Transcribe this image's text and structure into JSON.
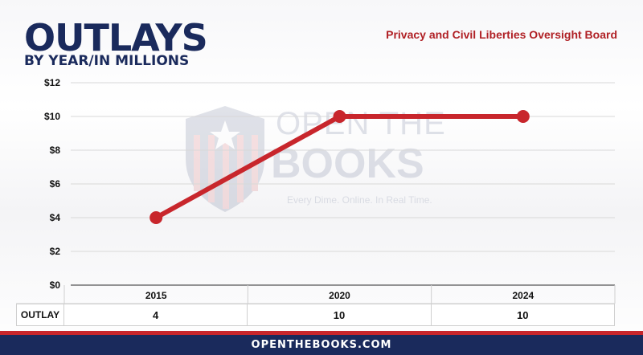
{
  "header": {
    "title": "OUTLAYS",
    "subtitle": "BY YEAR/IN MILLIONS",
    "agency": "Privacy and Civil Liberties Oversight Board"
  },
  "watermark": {
    "line1": "OPEN THE",
    "line2": "BOOKS",
    "tagline": "Every Dime. Online. In Real Time."
  },
  "chart_data": {
    "type": "line",
    "categories": [
      "2015",
      "2020",
      "2024"
    ],
    "series": [
      {
        "values": [
          4,
          10,
          10
        ],
        "color": "#c8262c"
      }
    ],
    "y_ticks": [
      "$0",
      "$2",
      "$4",
      "$6",
      "$8",
      "$10",
      "$12"
    ],
    "ylim": [
      0,
      12
    ],
    "grid": "horizontal",
    "table_row_label": "OUTLAY",
    "table_values": [
      "4",
      "10",
      "10"
    ]
  },
  "footer": {
    "text": "OPENTHEBOOKS.COM",
    "bar_color": "#1a2a5c",
    "accent_color": "#c8262c"
  }
}
